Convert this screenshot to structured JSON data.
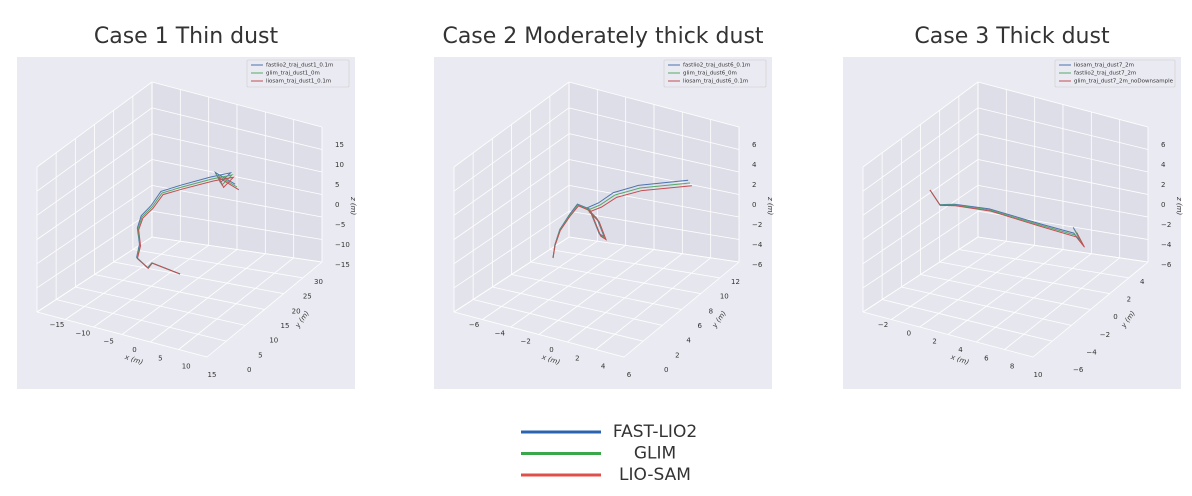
{
  "panels": [
    {
      "title": "Case 1 Thin dust",
      "legend": [
        "fastlio2_traj_dust1_0.1m",
        "glim_traj_dust1_0m",
        "liosam_traj_dust1_0.1m"
      ],
      "x_label": "x (m)",
      "y_label": "y (m)",
      "z_label": "z (m)",
      "x_ticks": [
        "−15",
        "−10",
        "−5",
        "0",
        "5",
        "10",
        "15"
      ],
      "y_ticks": [
        "0",
        "5",
        "10",
        "15",
        "20",
        "25",
        "30"
      ],
      "z_ticks": [
        "15",
        "10",
        "5",
        "0",
        "−5",
        "−10",
        "−15"
      ]
    },
    {
      "title": "Case 2 Moderately thick dust",
      "legend": [
        "fastlio2_traj_dust6_0.1m",
        "glim_traj_dust6_0m",
        "liosam_traj_dust6_0.1m"
      ],
      "x_label": "x (m)",
      "y_label": "y (m)",
      "z_label": "z (m)",
      "x_ticks": [
        "−6",
        "−4",
        "−2",
        "0",
        "2",
        "4",
        "6"
      ],
      "y_ticks": [
        "0",
        "2",
        "4",
        "6",
        "8",
        "10",
        "12"
      ],
      "z_ticks": [
        "6",
        "4",
        "2",
        "0",
        "−2",
        "−4",
        "−6"
      ]
    },
    {
      "title": "Case 3 Thick dust",
      "legend": [
        "liosam_traj_dust7_2m",
        "fastlio2_traj_dust7_2m",
        "glim_traj_dust7_2m_noDownsample"
      ],
      "x_label": "x (m)",
      "y_label": "y (m)",
      "z_label": "z (m)",
      "x_ticks": [
        "−2",
        "0",
        "2",
        "4",
        "6",
        "8",
        "10"
      ],
      "y_ticks": [
        "−6",
        "−4",
        "−2",
        "0",
        "2",
        "4"
      ],
      "z_ticks": [
        "6",
        "4",
        "2",
        "0",
        "−2",
        "−4",
        "−6"
      ]
    }
  ],
  "legend": [
    "FAST-LIO2",
    "GLIM",
    "LIO-SAM"
  ]
}
